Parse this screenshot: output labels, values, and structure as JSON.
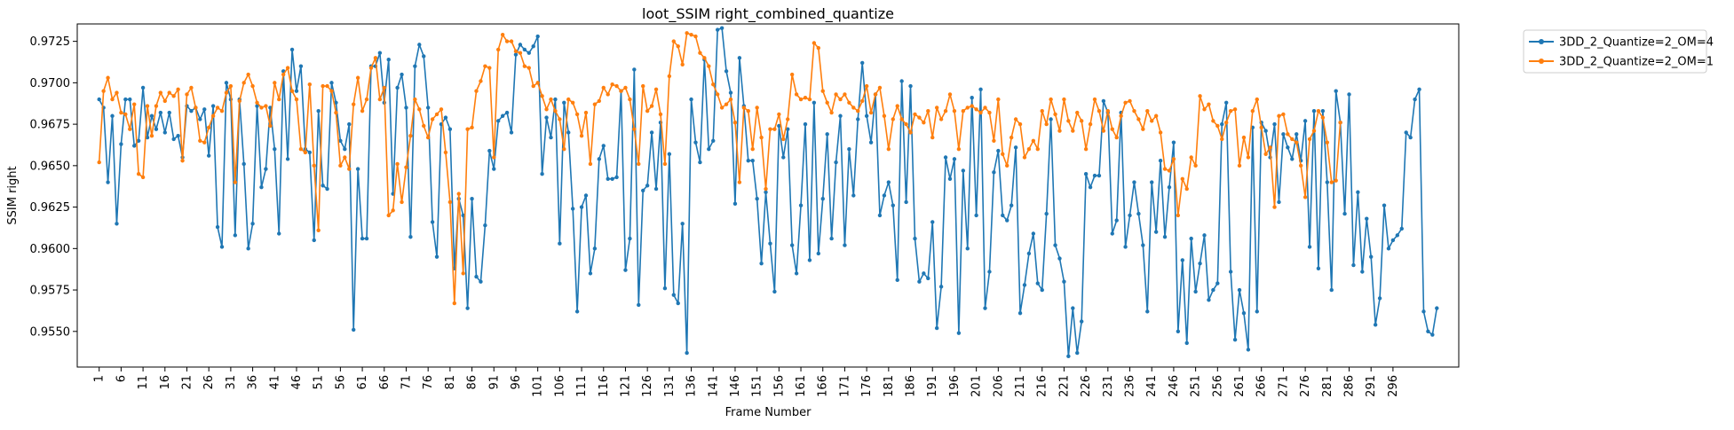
{
  "chart_data": {
    "type": "line",
    "title": "loot_SSIM right_combined_quantize",
    "xlabel": "Frame Number",
    "ylabel": "SSIM right",
    "xlim": [
      -4,
      311
    ],
    "ylim": [
      0.95285,
      0.97355
    ],
    "x_ticks": [
      1,
      6,
      11,
      16,
      21,
      26,
      31,
      36,
      41,
      46,
      51,
      56,
      61,
      66,
      71,
      76,
      81,
      86,
      91,
      96,
      101,
      106,
      111,
      116,
      121,
      126,
      131,
      136,
      141,
      146,
      151,
      156,
      161,
      166,
      171,
      176,
      181,
      186,
      191,
      196,
      201,
      206,
      211,
      216,
      221,
      226,
      231,
      236,
      241,
      246,
      251,
      256,
      261,
      266,
      271,
      276,
      281,
      286,
      291,
      296
    ],
    "y_ticks": [
      0.955,
      0.9575,
      0.96,
      0.9625,
      0.965,
      0.9675,
      0.97,
      0.9725
    ],
    "y_tick_labels": [
      "0.9550",
      "0.9575",
      "0.9600",
      "0.9625",
      "0.9650",
      "0.9675",
      "0.9700",
      "0.9725"
    ],
    "x_start": 1,
    "grid": false,
    "legend_placement": "outside-top-right",
    "series": [
      {
        "name": "3DD_2_Quantize=2_OM=4",
        "color": "#1f77b4",
        "values": [
          0.969,
          0.9685,
          0.964,
          0.968,
          0.9615,
          0.9663,
          0.969,
          0.969,
          0.9662,
          0.9665,
          0.9697,
          0.9667,
          0.968,
          0.9672,
          0.9682,
          0.967,
          0.9682,
          0.9666,
          0.9668,
          0.9655,
          0.9686,
          0.9683,
          0.9685,
          0.9678,
          0.9684,
          0.9656,
          0.9686,
          0.9613,
          0.9601,
          0.97,
          0.969,
          0.9608,
          0.969,
          0.9651,
          0.96,
          0.9615,
          0.9686,
          0.9637,
          0.9648,
          0.9685,
          0.966,
          0.9609,
          0.9707,
          0.9654,
          0.972,
          0.9695,
          0.971,
          0.966,
          0.9658,
          0.9605,
          0.9683,
          0.9638,
          0.9636,
          0.97,
          0.9688,
          0.9665,
          0.966,
          0.9675,
          0.9551,
          0.9648,
          0.9606,
          0.9606,
          0.971,
          0.971,
          0.9718,
          0.9688,
          0.9714,
          0.9633,
          0.9697,
          0.9705,
          0.9685,
          0.9607,
          0.971,
          0.9723,
          0.9716,
          0.9685,
          0.9616,
          0.9595,
          0.9675,
          0.9679,
          0.9672,
          0.9588,
          0.963,
          0.962,
          0.9564,
          0.963,
          0.9583,
          0.958,
          0.9614,
          0.9659,
          0.9648,
          0.9677,
          0.968,
          0.9682,
          0.967,
          0.9717,
          0.9723,
          0.972,
          0.9718,
          0.9722,
          0.9728,
          0.9645,
          0.9679,
          0.9667,
          0.969,
          0.9603,
          0.9688,
          0.967,
          0.9624,
          0.9562,
          0.9625,
          0.9632,
          0.9585,
          0.96,
          0.9654,
          0.9662,
          0.9642,
          0.9642,
          0.9643,
          0.9695,
          0.9587,
          0.9606,
          0.9708,
          0.9566,
          0.9635,
          0.9638,
          0.967,
          0.9636,
          0.9676,
          0.9576,
          0.9657,
          0.9572,
          0.9567,
          0.9615,
          0.9537,
          0.969,
          0.9664,
          0.9652,
          0.9714,
          0.966,
          0.9665,
          0.9732,
          0.9733,
          0.9707,
          0.9694,
          0.9627,
          0.9715,
          0.9686,
          0.9653,
          0.9653,
          0.963,
          0.9591,
          0.9634,
          0.9603,
          0.9574,
          0.9674,
          0.9655,
          0.9672,
          0.9602,
          0.9585,
          0.9626,
          0.9675,
          0.9593,
          0.9688,
          0.9597,
          0.963,
          0.9669,
          0.9606,
          0.9652,
          0.968,
          0.9602,
          0.966,
          0.9632,
          0.9678,
          0.9712,
          0.968,
          0.9664,
          0.9693,
          0.962,
          0.9632,
          0.964,
          0.9626,
          0.9581,
          0.9701,
          0.9628,
          0.9698,
          0.9606,
          0.958,
          0.9585,
          0.9582,
          0.9616,
          0.9552,
          0.9577,
          0.9655,
          0.9642,
          0.9654,
          0.9549,
          0.9647,
          0.96,
          0.9691,
          0.962,
          0.9696,
          0.9564,
          0.9586,
          0.9646,
          0.9659,
          0.962,
          0.9617,
          0.9626,
          0.9661,
          0.9561,
          0.9578,
          0.9597,
          0.9609,
          0.9579,
          0.9575,
          0.9621,
          0.9678,
          0.9602,
          0.9594,
          0.958,
          0.9535,
          0.9564,
          0.9537,
          0.9556,
          0.9645,
          0.9637,
          0.9644,
          0.9644,
          0.9689,
          0.9682,
          0.9609,
          0.9617,
          0.9682,
          0.9601,
          0.962,
          0.964,
          0.9621,
          0.9602,
          0.9562,
          0.964,
          0.961,
          0.9653,
          0.9607,
          0.9637,
          0.9664,
          0.955,
          0.9593,
          0.9543,
          0.9606,
          0.9574,
          0.9591,
          0.9608,
          0.9569,
          0.9575,
          0.9579,
          0.9675,
          0.9688,
          0.9586,
          0.9545,
          0.9575,
          0.9561,
          0.9539,
          0.9673,
          0.9562,
          0.9676,
          0.9671,
          0.9655,
          0.9675,
          0.9628,
          0.9669,
          0.9661,
          0.9654,
          0.9669,
          0.9653,
          0.9677,
          0.9601,
          0.9683,
          0.9588,
          0.9683,
          0.964,
          0.9575,
          0.9695,
          0.9676,
          0.9621,
          0.9693,
          0.959,
          0.9634,
          0.9586,
          0.9618,
          0.9595,
          0.9554,
          0.957,
          0.9626,
          0.96,
          0.9605,
          0.9608,
          0.9612,
          0.967,
          0.9667,
          0.969,
          0.9696,
          0.9562,
          0.955,
          0.9548,
          0.9564
        ]
      },
      {
        "name": "3DD_2_Quantize=2_OM=1",
        "color": "#ff7f0e",
        "values": [
          0.9652,
          0.9695,
          0.9703,
          0.969,
          0.9694,
          0.9682,
          0.9681,
          0.9672,
          0.9687,
          0.9645,
          0.9643,
          0.9686,
          0.9668,
          0.9686,
          0.9694,
          0.9689,
          0.9694,
          0.9692,
          0.9696,
          0.9653,
          0.9693,
          0.9697,
          0.9685,
          0.9665,
          0.9664,
          0.9673,
          0.968,
          0.9685,
          0.9683,
          0.9694,
          0.9698,
          0.964,
          0.9689,
          0.97,
          0.9705,
          0.9698,
          0.9688,
          0.9685,
          0.9686,
          0.9674,
          0.97,
          0.969,
          0.9705,
          0.9709,
          0.9695,
          0.969,
          0.966,
          0.9658,
          0.9699,
          0.965,
          0.9611,
          0.9698,
          0.9698,
          0.9695,
          0.9682,
          0.965,
          0.9655,
          0.9648,
          0.9687,
          0.9703,
          0.9683,
          0.969,
          0.9709,
          0.9715,
          0.969,
          0.9697,
          0.962,
          0.9623,
          0.9651,
          0.9628,
          0.9649,
          0.9668,
          0.969,
          0.9684,
          0.9674,
          0.9667,
          0.9678,
          0.9681,
          0.9684,
          0.9658,
          0.9628,
          0.9567,
          0.9633,
          0.9585,
          0.9672,
          0.9673,
          0.9695,
          0.9701,
          0.971,
          0.9709,
          0.9655,
          0.972,
          0.9729,
          0.9725,
          0.9725,
          0.9719,
          0.9718,
          0.971,
          0.9709,
          0.9698,
          0.97,
          0.9692,
          0.9684,
          0.969,
          0.9683,
          0.9678,
          0.966,
          0.969,
          0.9688,
          0.9681,
          0.9668,
          0.9682,
          0.9651,
          0.9687,
          0.9689,
          0.9697,
          0.9693,
          0.9699,
          0.9698,
          0.9695,
          0.9697,
          0.969,
          0.9672,
          0.9651,
          0.9698,
          0.9683,
          0.9686,
          0.9696,
          0.9681,
          0.9651,
          0.9704,
          0.9725,
          0.9722,
          0.9711,
          0.973,
          0.9729,
          0.9728,
          0.9718,
          0.9715,
          0.971,
          0.9699,
          0.9693,
          0.9685,
          0.9687,
          0.969,
          0.9676,
          0.964,
          0.9685,
          0.9683,
          0.966,
          0.9685,
          0.9667,
          0.9636,
          0.9672,
          0.9672,
          0.9681,
          0.9666,
          0.9678,
          0.9705,
          0.9693,
          0.969,
          0.9691,
          0.969,
          0.9724,
          0.9721,
          0.9695,
          0.9688,
          0.9682,
          0.9693,
          0.969,
          0.9693,
          0.9688,
          0.9685,
          0.9683,
          0.9689,
          0.9698,
          0.9682,
          0.9693,
          0.9697,
          0.968,
          0.966,
          0.9678,
          0.9686,
          0.9678,
          0.9675,
          0.967,
          0.9681,
          0.9679,
          0.9676,
          0.9683,
          0.9667,
          0.9685,
          0.9678,
          0.9683,
          0.9693,
          0.9683,
          0.966,
          0.9683,
          0.9685,
          0.9686,
          0.9684,
          0.9682,
          0.9685,
          0.9682,
          0.9665,
          0.969,
          0.9657,
          0.965,
          0.9667,
          0.9678,
          0.9675,
          0.9655,
          0.966,
          0.9665,
          0.966,
          0.9683,
          0.9675,
          0.969,
          0.9681,
          0.9671,
          0.969,
          0.9677,
          0.9671,
          0.9682,
          0.9677,
          0.966,
          0.9675,
          0.969,
          0.9683,
          0.9671,
          0.9683,
          0.9672,
          0.9667,
          0.968,
          0.9688,
          0.9689,
          0.9683,
          0.9678,
          0.9672,
          0.9683,
          0.9677,
          0.968,
          0.967,
          0.9648,
          0.9647,
          0.9654,
          0.962,
          0.9642,
          0.9636,
          0.9655,
          0.965,
          0.9692,
          0.9684,
          0.9687,
          0.9677,
          0.9674,
          0.9666,
          0.9676,
          0.9683,
          0.9684,
          0.965,
          0.9667,
          0.9655,
          0.9683,
          0.969,
          0.9673,
          0.9657,
          0.9661,
          0.9625,
          0.968,
          0.9681,
          0.9669,
          0.9666,
          0.9664,
          0.965,
          0.9631,
          0.9666,
          0.9671,
          0.9683,
          0.9679,
          0.9664,
          0.964,
          0.9641,
          0.9676
        ]
      }
    ]
  }
}
